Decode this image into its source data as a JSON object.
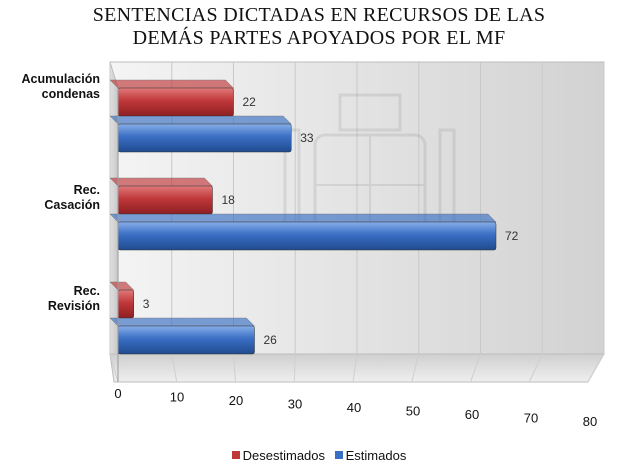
{
  "chart_data": {
    "type": "bar",
    "orientation": "horizontal",
    "title_lines": [
      "SENTENCIAS DICTADAS EN RECURSOS DE LAS",
      "DEMÁS PARTES APOYADOS POR EL MF"
    ],
    "categories": [
      {
        "lines": [
          "Acumulación",
          "condenas"
        ]
      },
      {
        "lines": [
          "Rec.",
          "Casación"
        ]
      },
      {
        "lines": [
          "Rec.",
          "Revisión"
        ]
      }
    ],
    "series": [
      {
        "name": "Desestimados",
        "color": "#c0383a",
        "values": [
          22,
          18,
          3
        ]
      },
      {
        "name": "Estimados",
        "color": "#3a6fc4",
        "values": [
          33,
          72,
          26
        ]
      }
    ],
    "xlim": [
      0,
      80
    ],
    "xticks": [
      "0",
      "10",
      "20",
      "30",
      "40",
      "50",
      "60",
      "70",
      "80"
    ],
    "grid": true,
    "legend_position": "bottom",
    "xlabel": "",
    "ylabel": ""
  }
}
